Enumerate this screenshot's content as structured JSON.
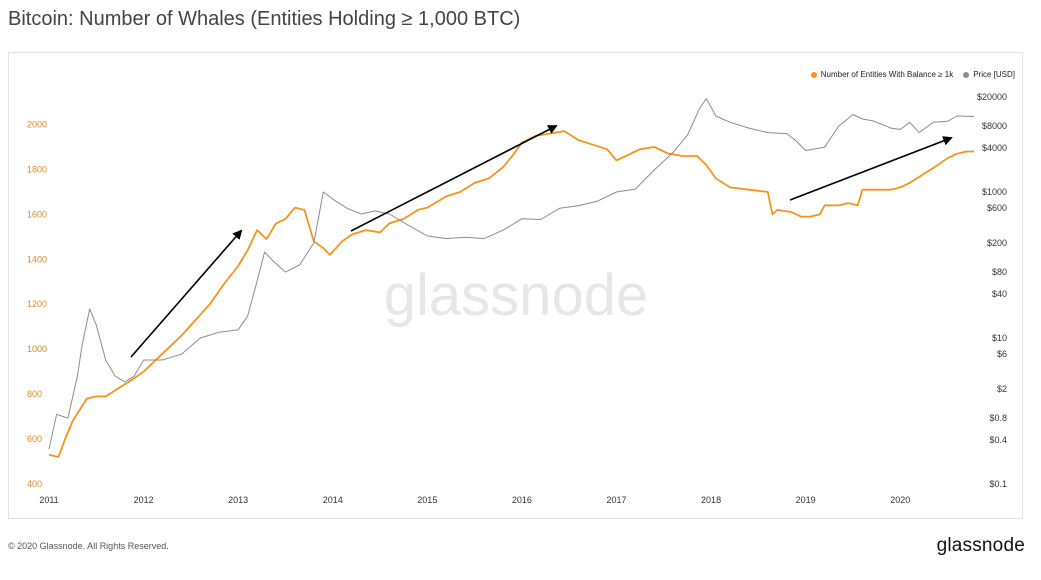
{
  "title": "Bitcoin: Number of Whales (Entities Holding ≥ 1,000 BTC)",
  "watermark": "glassnode",
  "footer": {
    "copyright": "© 2020 Glassnode. All Rights Reserved.",
    "logo": "glassnode"
  },
  "legend": [
    {
      "label": "Number of Entities With Balance ≥ 1k",
      "color": "#f7931a"
    },
    {
      "label": "Price [USD]",
      "color": "#8c8c8c"
    }
  ],
  "chart_data": {
    "type": "line",
    "title": "Bitcoin: Number of Whales (Entities Holding ≥ 1,000 BTC)",
    "x_ticks": [
      "2011",
      "2012",
      "2013",
      "2014",
      "2015",
      "2016",
      "2017",
      "2018",
      "2019",
      "2020"
    ],
    "xlim": [
      2011.0,
      2020.78
    ],
    "left_axis": {
      "ticks": [
        "400",
        "600",
        "800",
        "1000",
        "1200",
        "1400",
        "1600",
        "1800",
        "2000"
      ],
      "ylim": [
        400,
        2020
      ],
      "color": "#d98a1f"
    },
    "right_axis": {
      "scale": "log",
      "ticks": [
        "$0.1",
        "$0.4",
        "$0.8",
        "$2",
        "$6",
        "$10",
        "$40",
        "$80",
        "$200",
        "$600",
        "$1000",
        "$4000",
        "$8000",
        "$20000"
      ],
      "tick_values": [
        0.1,
        0.4,
        0.8,
        2,
        6,
        10,
        40,
        80,
        200,
        600,
        1000,
        4000,
        8000,
        20000
      ],
      "ylim": [
        0.1,
        20000
      ]
    },
    "grid": false,
    "legend_position": "top-right",
    "series": [
      {
        "name": "Number of Entities With Balance ≥ 1k",
        "axis": "left",
        "color": "#f7931a",
        "x": [
          2011.0,
          2011.1,
          2011.17,
          2011.25,
          2011.4,
          2011.5,
          2011.6,
          2011.75,
          2011.9,
          2012.0,
          2012.1,
          2012.25,
          2012.4,
          2012.55,
          2012.7,
          2012.85,
          2013.0,
          2013.1,
          2013.2,
          2013.3,
          2013.4,
          2013.5,
          2013.6,
          2013.7,
          2013.8,
          2013.9,
          2013.97,
          2014.1,
          2014.2,
          2014.35,
          2014.5,
          2014.6,
          2014.75,
          2014.9,
          2015.0,
          2015.2,
          2015.35,
          2015.5,
          2015.65,
          2015.8,
          2015.9,
          2016.0,
          2016.15,
          2016.3,
          2016.45,
          2016.6,
          2016.75,
          2016.9,
          2017.0,
          2017.1,
          2017.25,
          2017.4,
          2017.55,
          2017.7,
          2017.85,
          2017.95,
          2018.05,
          2018.2,
          2018.4,
          2018.6,
          2018.65,
          2018.7,
          2018.85,
          2018.95,
          2019.05,
          2019.15,
          2019.2,
          2019.35,
          2019.45,
          2019.55,
          2019.6,
          2019.75,
          2019.9,
          2020.0,
          2020.1,
          2020.25,
          2020.4,
          2020.5,
          2020.6,
          2020.7,
          2020.78
        ],
        "values": [
          530,
          520,
          600,
          680,
          780,
          790,
          790,
          830,
          870,
          900,
          940,
          1000,
          1060,
          1130,
          1200,
          1290,
          1370,
          1440,
          1530,
          1490,
          1560,
          1580,
          1630,
          1620,
          1480,
          1450,
          1420,
          1480,
          1510,
          1530,
          1520,
          1560,
          1580,
          1620,
          1630,
          1680,
          1700,
          1740,
          1760,
          1810,
          1860,
          1920,
          1950,
          1960,
          1970,
          1930,
          1910,
          1890,
          1840,
          1860,
          1890,
          1900,
          1870,
          1860,
          1860,
          1820,
          1760,
          1720,
          1710,
          1700,
          1600,
          1620,
          1610,
          1590,
          1590,
          1600,
          1640,
          1640,
          1650,
          1640,
          1710,
          1710,
          1710,
          1720,
          1740,
          1780,
          1820,
          1850,
          1870,
          1880,
          1880
        ]
      },
      {
        "name": "Price [USD]",
        "axis": "right",
        "color": "#8c8c8c",
        "x": [
          2011.0,
          2011.08,
          2011.2,
          2011.3,
          2011.35,
          2011.43,
          2011.5,
          2011.6,
          2011.7,
          2011.8,
          2011.9,
          2012.0,
          2012.2,
          2012.4,
          2012.6,
          2012.8,
          2013.0,
          2013.1,
          2013.2,
          2013.28,
          2013.35,
          2013.5,
          2013.65,
          2013.8,
          2013.9,
          2014.0,
          2014.15,
          2014.3,
          2014.45,
          2014.6,
          2014.8,
          2015.0,
          2015.2,
          2015.4,
          2015.6,
          2015.8,
          2016.0,
          2016.2,
          2016.4,
          2016.6,
          2016.8,
          2017.0,
          2017.2,
          2017.4,
          2017.6,
          2017.75,
          2017.88,
          2017.95,
          2018.05,
          2018.2,
          2018.4,
          2018.6,
          2018.8,
          2018.9,
          2019.0,
          2019.2,
          2019.35,
          2019.5,
          2019.6,
          2019.7,
          2019.8,
          2019.9,
          2020.0,
          2020.1,
          2020.2,
          2020.35,
          2020.5,
          2020.6,
          2020.78
        ],
        "values": [
          0.3,
          0.9,
          0.8,
          3,
          8,
          25,
          15,
          5,
          3,
          2.5,
          3,
          5,
          5,
          6,
          10,
          12,
          13,
          20,
          60,
          150,
          120,
          80,
          100,
          200,
          1000,
          800,
          600,
          500,
          550,
          500,
          350,
          250,
          230,
          240,
          230,
          300,
          430,
          420,
          600,
          650,
          750,
          1000,
          1100,
          2000,
          3500,
          6000,
          14000,
          19000,
          11000,
          9000,
          7500,
          6500,
          6300,
          5000,
          3700,
          4100,
          8000,
          11500,
          10000,
          9500,
          8500,
          7500,
          7200,
          9000,
          6500,
          9000,
          9300,
          11000,
          10800
        ]
      }
    ]
  }
}
